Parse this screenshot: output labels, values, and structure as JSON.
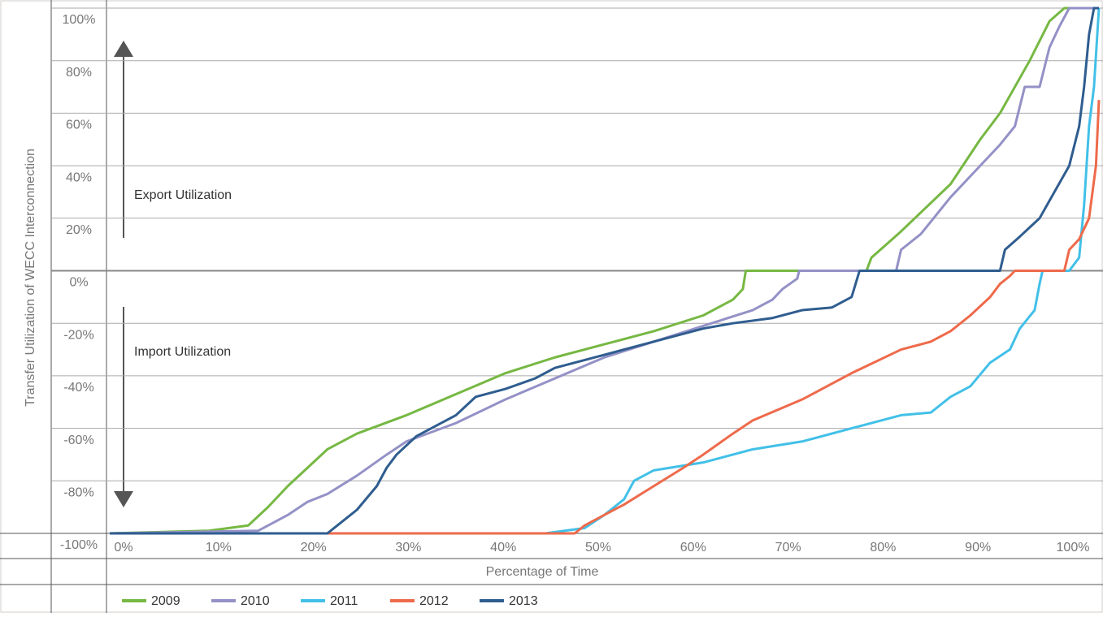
{
  "chart_data": {
    "type": "line",
    "ylabel": "Transfer Utilization of WECC Interconnection",
    "xlabel": "Percentage of Time",
    "annotations": [
      "Export Utilization",
      "Import Utilization"
    ],
    "xlim": [
      0,
      100
    ],
    "ylim": [
      -100,
      100
    ],
    "xticks": [
      {
        "value": 0,
        "label": "0%"
      },
      {
        "value": 10,
        "label": "10%"
      },
      {
        "value": 20,
        "label": "20%"
      },
      {
        "value": 30,
        "label": "30%"
      },
      {
        "value": 40,
        "label": "40%"
      },
      {
        "value": 50,
        "label": "50%"
      },
      {
        "value": 60,
        "label": "60%"
      },
      {
        "value": 70,
        "label": "70%"
      },
      {
        "value": 80,
        "label": "80%"
      },
      {
        "value": 90,
        "label": "90%"
      },
      {
        "value": 100,
        "label": "100%"
      }
    ],
    "yticks": [
      {
        "value": -100,
        "label": "-100%"
      },
      {
        "value": -80,
        "label": "-80%"
      },
      {
        "value": -60,
        "label": "-60%"
      },
      {
        "value": -40,
        "label": "-40%"
      },
      {
        "value": -20,
        "label": "-20%"
      },
      {
        "value": 0,
        "label": "0%"
      },
      {
        "value": 20,
        "label": "20%"
      },
      {
        "value": 40,
        "label": "40%"
      },
      {
        "value": 60,
        "label": "60%"
      },
      {
        "value": 80,
        "label": "80%"
      },
      {
        "value": 100,
        "label": "100%"
      }
    ],
    "grid": true,
    "series": [
      {
        "name": "2009",
        "color": "#76b843",
        "x": [
          0,
          10,
          14,
          16,
          18,
          20,
          22,
          25,
          30,
          35,
          40,
          45,
          50,
          55,
          60,
          63,
          64,
          64.3,
          76.5,
          77,
          80,
          85,
          88,
          90,
          93,
          95,
          96.5,
          100
        ],
        "values": [
          -100,
          -99,
          -97,
          -90,
          -82,
          -75,
          -68,
          -62,
          -55,
          -47,
          -39,
          -33,
          -28,
          -23,
          -17,
          -11,
          -7,
          0,
          0,
          5,
          15,
          33,
          50,
          60,
          80,
          95,
          100,
          100
        ]
      },
      {
        "name": "2010",
        "color": "#9391c6",
        "x": [
          0,
          15,
          18,
          20,
          22,
          25,
          28,
          30,
          35,
          40,
          45,
          50,
          55,
          60,
          65,
          67,
          68,
          69.5,
          69.7,
          79.5,
          80,
          82,
          85,
          88,
          90,
          91.5,
          92.5,
          94,
          95,
          96,
          97,
          100
        ],
        "values": [
          -100,
          -99,
          -93,
          -88,
          -85,
          -78,
          -70,
          -65,
          -58,
          -49,
          -41,
          -33,
          -27,
          -21,
          -15,
          -11,
          -7,
          -3,
          0,
          0,
          8,
          14,
          28,
          40,
          48,
          55,
          70,
          70,
          85,
          93,
          100,
          100
        ]
      },
      {
        "name": "2011",
        "color": "#42c0e8",
        "x": [
          0,
          44,
          46,
          48,
          50,
          52,
          53,
          55,
          60,
          65,
          70,
          75,
          80,
          83,
          85,
          87,
          89,
          91,
          92,
          93.5,
          94,
          94.3,
          97,
          98,
          98.5,
          99,
          99.5,
          100
        ],
        "values": [
          -100,
          -100,
          -99,
          -98,
          -93,
          -87,
          -80,
          -76,
          -73,
          -68,
          -65,
          -60,
          -55,
          -54,
          -48,
          -44,
          -35,
          -30,
          -22,
          -15,
          -5,
          0,
          0,
          5,
          25,
          55,
          70,
          100
        ]
      },
      {
        "name": "2012",
        "color": "#ee6a4b",
        "x": [
          0,
          22,
          47,
          48,
          50,
          52,
          55,
          58,
          60,
          63,
          65,
          70,
          75,
          80,
          83,
          85,
          87,
          89,
          90,
          91,
          91.5,
          96.5,
          97,
          98,
          99,
          99.7,
          100
        ],
        "values": [
          -100,
          -100,
          -100,
          -97,
          -93,
          -89,
          -82,
          -75,
          -70,
          -62,
          -57,
          -49,
          -39,
          -30,
          -27,
          -23,
          -17,
          -10,
          -5,
          -2,
          0,
          0,
          8,
          12,
          20,
          40,
          65
        ]
      },
      {
        "name": "2013",
        "color": "#2f5d8f",
        "x": [
          0,
          22,
          23,
          25,
          27,
          28,
          29,
          31,
          35,
          37,
          40,
          43,
          45,
          50,
          55,
          60,
          63,
          67,
          70,
          73,
          75,
          75.8,
          90,
          90.5,
          92,
          94,
          95.5,
          97,
          98,
          98.5,
          99,
          99.5,
          100
        ],
        "values": [
          -100,
          -100,
          -97,
          -91,
          -82,
          -75,
          -70,
          -63,
          -55,
          -48,
          -45,
          -41,
          -37,
          -32,
          -27,
          -22,
          -20,
          -18,
          -15,
          -14,
          -10,
          0,
          0,
          8,
          13,
          20,
          30,
          40,
          55,
          70,
          90,
          100,
          100
        ]
      }
    ]
  }
}
